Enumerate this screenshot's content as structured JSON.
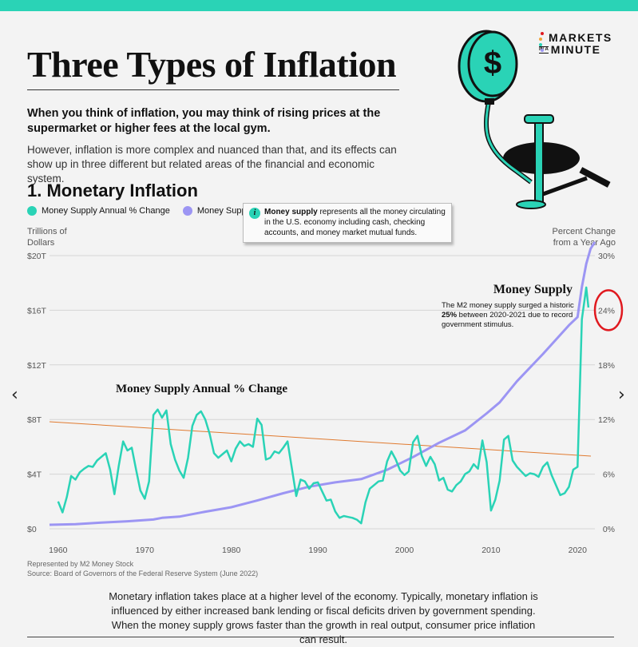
{
  "page": {
    "title": "Three Types of Inflation",
    "intro_bold": "When you think of inflation, you may think of rising prices at the supermarket or higher fees at the local gym.",
    "intro": "However, inflation is more complex and nuanced than that, and its effects can show up in three different but related areas of the financial and economic system.",
    "section_title": "1. Monetary Inflation",
    "source_line1": "Represented by M2 Money Stock",
    "source_line2": "Source: Board of Governors of the Federal Reserve System (June 2022)",
    "footer": "Monetary inflation takes place at a higher level of the economy. Typically, monetary inflation is influenced by either increased bank lending or fiscal deficits driven by government spending. When the money supply grows faster than the growth in real output, consumer price inflation can result.",
    "nav_prev": "‹",
    "nav_next": "›"
  },
  "logo": {
    "line1": "MARKETS",
    "prefix": "IN A",
    "line2": "MINUTE",
    "icon": "dollar-coin-pump-icon"
  },
  "infobox": {
    "icon": "info-icon",
    "icon_glyph": "i",
    "bold": "Money supply",
    "text": " represents all the money circulating in the U.S. economy including cash, checking accounts, and money market mutual funds."
  },
  "colors": {
    "teal": "#2ad3b6",
    "purple": "#9c95f3",
    "trendline": "#e07a2f",
    "highlight_circle": "#e0191f"
  },
  "chart_data": {
    "type": "line",
    "title": "",
    "y_left_label": "Trillions of Dollars",
    "y_right_label": "Percent Change from a Year Ago",
    "x_ticks": [
      "1960",
      "1970",
      "1980",
      "1990",
      "2000",
      "2010",
      "2020"
    ],
    "y_left_ticks": [
      "$0",
      "$4T",
      "$8T",
      "$12T",
      "$16T",
      "$20T"
    ],
    "y_right_ticks": [
      "0%",
      "6%",
      "12%",
      "18%",
      "24%",
      "30%"
    ],
    "xlim": [
      1959,
      2022
    ],
    "y_left_lim": [
      0,
      20
    ],
    "y_right_lim": [
      0,
      30
    ],
    "grid": true,
    "legend_position": "top-left",
    "series": [
      {
        "name": "Money Supply Annual % Change",
        "axis": "right",
        "points": [
          [
            1960.0,
            3.0
          ],
          [
            1960.5,
            1.8
          ],
          [
            1961.0,
            3.5
          ],
          [
            1961.5,
            5.8
          ],
          [
            1962.0,
            5.4
          ],
          [
            1962.5,
            6.2
          ],
          [
            1963.0,
            6.6
          ],
          [
            1963.5,
            6.9
          ],
          [
            1964.0,
            6.8
          ],
          [
            1964.5,
            7.5
          ],
          [
            1965.0,
            7.9
          ],
          [
            1965.5,
            8.3
          ],
          [
            1966.0,
            6.5
          ],
          [
            1966.5,
            3.8
          ],
          [
            1967.0,
            6.9
          ],
          [
            1967.5,
            9.6
          ],
          [
            1968.0,
            8.6
          ],
          [
            1968.5,
            8.9
          ],
          [
            1969.0,
            6.5
          ],
          [
            1969.5,
            4.2
          ],
          [
            1970.0,
            3.3
          ],
          [
            1970.5,
            5.2
          ],
          [
            1971.0,
            12.5
          ],
          [
            1971.5,
            13.1
          ],
          [
            1972.0,
            12.2
          ],
          [
            1972.5,
            13.0
          ],
          [
            1973.0,
            9.3
          ],
          [
            1973.5,
            7.6
          ],
          [
            1974.0,
            6.4
          ],
          [
            1974.5,
            5.6
          ],
          [
            1975.0,
            7.8
          ],
          [
            1975.5,
            11.3
          ],
          [
            1976.0,
            12.5
          ],
          [
            1976.5,
            12.9
          ],
          [
            1977.0,
            12.0
          ],
          [
            1977.5,
            10.4
          ],
          [
            1978.0,
            8.3
          ],
          [
            1978.5,
            7.8
          ],
          [
            1979.0,
            8.2
          ],
          [
            1979.5,
            8.6
          ],
          [
            1980.0,
            7.4
          ],
          [
            1980.5,
            8.8
          ],
          [
            1981.0,
            9.6
          ],
          [
            1981.5,
            9.1
          ],
          [
            1982.0,
            9.3
          ],
          [
            1982.5,
            9.0
          ],
          [
            1983.0,
            12.1
          ],
          [
            1983.5,
            11.4
          ],
          [
            1984.0,
            7.6
          ],
          [
            1984.5,
            7.8
          ],
          [
            1985.0,
            8.5
          ],
          [
            1985.5,
            8.3
          ],
          [
            1986.0,
            8.9
          ],
          [
            1986.5,
            9.6
          ],
          [
            1987.0,
            6.6
          ],
          [
            1987.5,
            3.6
          ],
          [
            1988.0,
            5.4
          ],
          [
            1988.5,
            5.2
          ],
          [
            1989.0,
            4.4
          ],
          [
            1989.5,
            5.0
          ],
          [
            1990.0,
            5.1
          ],
          [
            1990.5,
            4.1
          ],
          [
            1991.0,
            3.1
          ],
          [
            1991.5,
            3.2
          ],
          [
            1992.0,
            1.9
          ],
          [
            1992.5,
            1.2
          ],
          [
            1993.0,
            1.4
          ],
          [
            1993.5,
            1.3
          ],
          [
            1994.0,
            1.2
          ],
          [
            1994.5,
            1.0
          ],
          [
            1995.0,
            0.6
          ],
          [
            1995.5,
            2.9
          ],
          [
            1996.0,
            4.4
          ],
          [
            1996.5,
            4.8
          ],
          [
            1997.0,
            5.2
          ],
          [
            1997.5,
            5.3
          ],
          [
            1998.0,
            7.4
          ],
          [
            1998.5,
            8.5
          ],
          [
            1999.0,
            7.6
          ],
          [
            1999.5,
            6.4
          ],
          [
            2000.0,
            5.9
          ],
          [
            2000.5,
            6.3
          ],
          [
            2001.0,
            9.5
          ],
          [
            2001.5,
            10.2
          ],
          [
            2002.0,
            8.0
          ],
          [
            2002.5,
            6.9
          ],
          [
            2003.0,
            7.9
          ],
          [
            2003.5,
            7.1
          ],
          [
            2004.0,
            5.3
          ],
          [
            2004.5,
            5.6
          ],
          [
            2005.0,
            4.3
          ],
          [
            2005.5,
            4.1
          ],
          [
            2006.0,
            4.8
          ],
          [
            2006.5,
            5.2
          ],
          [
            2007.0,
            6.0
          ],
          [
            2007.5,
            6.3
          ],
          [
            2008.0,
            7.1
          ],
          [
            2008.5,
            6.6
          ],
          [
            2009.0,
            9.7
          ],
          [
            2009.5,
            7.3
          ],
          [
            2010.0,
            2.0
          ],
          [
            2010.5,
            3.2
          ],
          [
            2011.0,
            5.3
          ],
          [
            2011.5,
            9.8
          ],
          [
            2012.0,
            10.2
          ],
          [
            2012.5,
            7.5
          ],
          [
            2013.0,
            6.8
          ],
          [
            2013.5,
            6.3
          ],
          [
            2014.0,
            5.8
          ],
          [
            2014.5,
            6.1
          ],
          [
            2015.0,
            6.0
          ],
          [
            2015.5,
            5.7
          ],
          [
            2016.0,
            6.8
          ],
          [
            2016.5,
            7.3
          ],
          [
            2017.0,
            5.9
          ],
          [
            2017.5,
            4.8
          ],
          [
            2018.0,
            3.7
          ],
          [
            2018.5,
            3.9
          ],
          [
            2019.0,
            4.6
          ],
          [
            2019.5,
            6.5
          ],
          [
            2020.0,
            6.8
          ],
          [
            2020.5,
            23.0
          ],
          [
            2021.0,
            26.5
          ],
          [
            2021.25,
            24.3
          ]
        ]
      },
      {
        "name": "Money Supply",
        "axis": "left",
        "points": [
          [
            1959.0,
            0.29
          ],
          [
            1962.0,
            0.34
          ],
          [
            1965.0,
            0.45
          ],
          [
            1968.0,
            0.55
          ],
          [
            1971.0,
            0.68
          ],
          [
            1972.0,
            0.8
          ],
          [
            1974.0,
            0.89
          ],
          [
            1977.0,
            1.25
          ],
          [
            1980.0,
            1.58
          ],
          [
            1983.0,
            2.07
          ],
          [
            1986.0,
            2.6
          ],
          [
            1989.0,
            3.08
          ],
          [
            1992.0,
            3.4
          ],
          [
            1995.0,
            3.64
          ],
          [
            1998.0,
            4.32
          ],
          [
            2001.0,
            5.25
          ],
          [
            2004.0,
            6.3
          ],
          [
            2007.0,
            7.2
          ],
          [
            2009.5,
            8.45
          ],
          [
            2011.0,
            9.25
          ],
          [
            2013.0,
            10.8
          ],
          [
            2016.0,
            12.8
          ],
          [
            2019.0,
            14.9
          ],
          [
            2020.0,
            15.5
          ],
          [
            2020.5,
            17.7
          ],
          [
            2021.0,
            19.4
          ],
          [
            2021.5,
            20.5
          ],
          [
            2022.0,
            21.0
          ]
        ]
      }
    ],
    "annotations": [
      {
        "title": "Money Supply",
        "text_pre": "The M2 money supply surged a historic ",
        "text_bold": "25%",
        "text_post": " between 2020-2021 due to record government stimulus."
      },
      {
        "title": "Money Supply Annual % Change"
      }
    ],
    "highlighted_tick": "24%"
  }
}
